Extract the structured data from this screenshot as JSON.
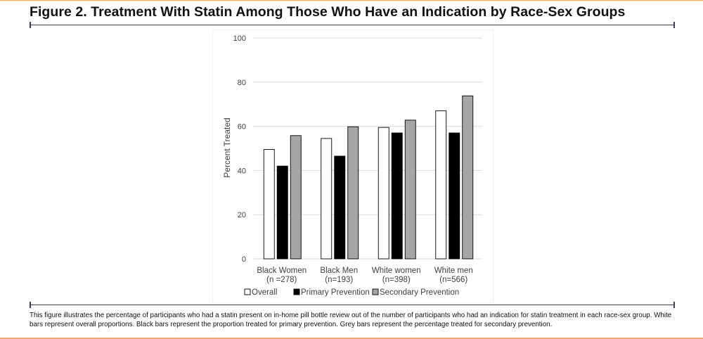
{
  "figure": {
    "title": "Figure 2. Treatment With Statin Among Those Who Have an Indication by Race-Sex Groups",
    "caption": "This figure illustrates the percentage of participants who had a statin present on in-home pill bottle review out of the number of participants who had an indication for statin treatment in each race-sex group. White bars represent overall proportions. Black bars represent the proportion treated for primary prevention. Grey bars represent the percentage treated for secondary prevention."
  },
  "colors": {
    "accent_rule": "#f5a46b",
    "divider": "#33406b",
    "grid": "#d9d9d9",
    "bar_outline": "#000000"
  },
  "chart_data": {
    "type": "bar",
    "title": "",
    "xlabel": "",
    "ylabel": "Percent Treated",
    "ylim": [
      0,
      100
    ],
    "yticks": [
      0,
      20,
      40,
      60,
      80,
      100
    ],
    "grid": true,
    "legend_position": "bottom",
    "categories": [
      {
        "line1": "Black Women",
        "line2": "(n =278)"
      },
      {
        "line1": "Black Men",
        "line2": "(n=193)"
      },
      {
        "line1": "White women",
        "line2": "(n=398)"
      },
      {
        "line1": "White men",
        "line2": "(n=566)"
      }
    ],
    "series": [
      {
        "name": "Overall",
        "color": "#ffffff",
        "values": [
          49.5,
          54.5,
          59.5,
          67
        ]
      },
      {
        "name": "Primary Prevention",
        "color": "#000000",
        "values": [
          42,
          46.5,
          57,
          57
        ]
      },
      {
        "name": "Secondary Prevention",
        "color": "#a6a6a6",
        "values": [
          55.8,
          59.8,
          62.8,
          73.8
        ]
      }
    ]
  }
}
